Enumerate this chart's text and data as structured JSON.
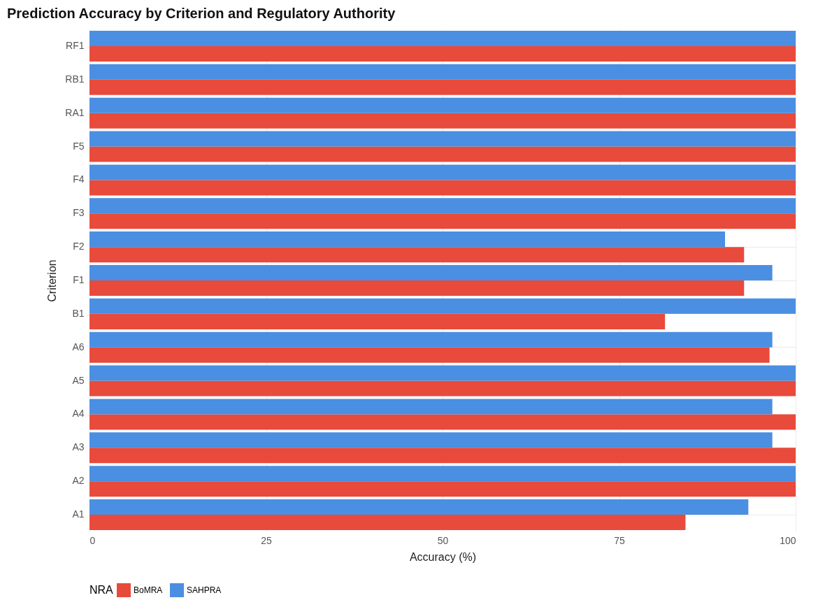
{
  "chart_data": {
    "type": "bar",
    "orientation": "horizontal",
    "title": "Prediction Accuracy by Criterion and Regulatory Authority",
    "xlabel": "Accuracy (%)",
    "ylabel": "Criterion",
    "legend_title": "NRA",
    "categories": [
      "RF1",
      "RB1",
      "RA1",
      "F5",
      "F4",
      "F3",
      "F2",
      "F1",
      "B1",
      "A6",
      "A5",
      "A4",
      "A3",
      "A2",
      "A1"
    ],
    "series": [
      {
        "name": "BoMRA",
        "color": "#e84a3c",
        "values": [
          100,
          100,
          100,
          100,
          100,
          100,
          92.7,
          92.7,
          81.5,
          96.3,
          100,
          100,
          100,
          100,
          84.4
        ]
      },
      {
        "name": "SAHPRA",
        "color": "#4a8fe2",
        "values": [
          100,
          100,
          100,
          100,
          100,
          100,
          90.0,
          96.7,
          100,
          96.7,
          100,
          96.7,
          96.7,
          100,
          93.3
        ]
      }
    ],
    "xlim": [
      0,
      100
    ],
    "xticks": [
      0,
      25,
      50,
      75,
      100
    ],
    "grid": true,
    "legend": "bottom"
  }
}
